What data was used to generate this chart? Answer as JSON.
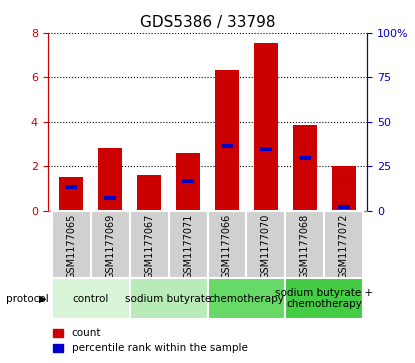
{
  "title": "GDS5386 / 33798",
  "samples": [
    "GSM1177065",
    "GSM1177069",
    "GSM1177067",
    "GSM1177071",
    "GSM1177066",
    "GSM1177070",
    "GSM1177068",
    "GSM1177072"
  ],
  "red_counts": [
    1.5,
    2.8,
    1.6,
    2.6,
    6.3,
    7.55,
    3.85,
    2.0
  ],
  "blue_percentiles": [
    1.05,
    0.55,
    0.0,
    1.35,
    2.9,
    2.75,
    2.35,
    0.15
  ],
  "groups": [
    {
      "label": "control",
      "indices": [
        0,
        1
      ],
      "color": "#d8f5d8"
    },
    {
      "label": "sodium butyrate",
      "indices": [
        2,
        3
      ],
      "color": "#b8ebb8"
    },
    {
      "label": "chemotherapy",
      "indices": [
        4,
        5
      ],
      "color": "#66d966"
    },
    {
      "label": "sodium butyrate +\nchemotherapy",
      "indices": [
        6,
        7
      ],
      "color": "#44cc44"
    }
  ],
  "ylim_left": [
    0,
    8
  ],
  "ylim_right": [
    0,
    100
  ],
  "yticks_left": [
    0,
    2,
    4,
    6,
    8
  ],
  "yticks_right": [
    0,
    25,
    50,
    75,
    100
  ],
  "yticklabels_right": [
    "0",
    "25",
    "50",
    "75",
    "100%"
  ],
  "left_tick_color": "#cc0000",
  "right_tick_color": "#0000cc",
  "bar_color": "#cc0000",
  "blue_color": "#0000cc",
  "bar_width": 0.6,
  "blue_bar_width": 0.3,
  "blue_bar_height": 0.18,
  "legend_items": [
    {
      "label": "count",
      "color": "#cc0000"
    },
    {
      "label": "percentile rank within the sample",
      "color": "#0000cc"
    }
  ],
  "protocol_label": "protocol",
  "x_bg_color": "#d0d0d0",
  "group_label_fontsize": 7.5,
  "sample_label_fontsize": 7,
  "title_fontsize": 11
}
